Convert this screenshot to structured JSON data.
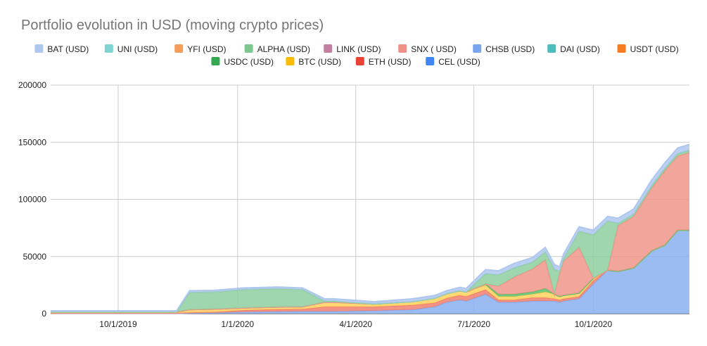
{
  "chart_data": {
    "type": "area",
    "stacked": true,
    "title": "Portfolio evolution in USD (moving crypto prices)",
    "xlabel": "",
    "ylabel": "",
    "ylim": [
      0,
      200000
    ],
    "yticks": [
      0,
      50000,
      100000,
      150000,
      200000
    ],
    "yticklabels": [
      "0",
      "50000",
      "100000",
      "150000",
      "200000"
    ],
    "xlim": [
      "2019-08-10",
      "2020-12-14"
    ],
    "xticks": [
      "2019-10-01",
      "2020-01-01",
      "2020-04-01",
      "2020-07-01",
      "2020-10-01"
    ],
    "xticklabels": [
      "10/1/2019",
      "1/1/2020",
      "4/1/2020",
      "7/1/2020",
      "10/1/2020"
    ],
    "grid": true,
    "legend_position": "top",
    "legend_order": [
      "BAT (USD)",
      "UNI (USD)",
      "YFI (USD)",
      "ALPHA (USD)",
      "LINK (USD)",
      "SNX ( USD)",
      "CHSB (USD)",
      "DAI (USD)",
      "USDT (USD)",
      "USDC (USD)",
      "BTC (USD)",
      "ETH (USD)",
      "CEL (USD)"
    ],
    "x": [
      "2019-08-10",
      "2019-09-15",
      "2019-10-15",
      "2019-11-15",
      "2019-11-25",
      "2019-12-15",
      "2020-01-05",
      "2020-02-01",
      "2020-02-20",
      "2020-03-08",
      "2020-03-15",
      "2020-04-15",
      "2020-05-15",
      "2020-06-01",
      "2020-06-10",
      "2020-06-20",
      "2020-06-25",
      "2020-07-10",
      "2020-07-20",
      "2020-08-01",
      "2020-08-15",
      "2020-08-25",
      "2020-09-01",
      "2020-09-05",
      "2020-09-08",
      "2020-09-20",
      "2020-10-01",
      "2020-10-12",
      "2020-10-20",
      "2020-11-01",
      "2020-11-15",
      "2020-11-25",
      "2020-12-05",
      "2020-12-14"
    ],
    "series": [
      {
        "name": "CEL (USD)",
        "color": "#8ab0f0",
        "values": [
          200,
          200,
          200,
          200,
          500,
          700,
          1500,
          1800,
          2000,
          2000,
          2000,
          2500,
          3500,
          6000,
          10000,
          12000,
          11000,
          17000,
          10000,
          10000,
          11000,
          11000,
          11000,
          10000,
          11000,
          13000,
          26000,
          38000,
          37000,
          40000,
          55000,
          60000,
          73000,
          73000
        ]
      },
      {
        "name": "ETH (USD)",
        "color": "#f08070",
        "values": [
          300,
          300,
          300,
          300,
          500,
          800,
          1500,
          2000,
          2000,
          4000,
          4000,
          3500,
          4000,
          3500,
          3500,
          4000,
          4000,
          4000,
          2000,
          2000,
          3000,
          3000,
          2000,
          2000,
          2000,
          2000,
          3000,
          0,
          0,
          0,
          0,
          0,
          0,
          0
        ]
      },
      {
        "name": "BTC (USD)",
        "color": "#ffd25e",
        "values": [
          1000,
          1000,
          1000,
          1000,
          2500,
          2500,
          2000,
          2000,
          2000,
          4000,
          4000,
          2500,
          3000,
          4000,
          4000,
          4000,
          4000,
          4000,
          3000,
          3000,
          3000,
          5000,
          4000,
          3000,
          3000,
          3000,
          2000,
          0,
          0,
          0,
          0,
          0,
          0,
          0
        ]
      },
      {
        "name": "USDC (USD)",
        "color": "#5fbf6e",
        "values": [
          0,
          0,
          0,
          0,
          0,
          0,
          0,
          0,
          0,
          0,
          0,
          0,
          0,
          0,
          0,
          0,
          0,
          1000,
          2000,
          2000,
          2000,
          3000,
          0,
          0,
          0,
          0,
          0,
          0,
          0,
          0,
          0,
          0,
          0,
          0
        ]
      },
      {
        "name": "SNX ( USD)",
        "color": "#f0958a",
        "values": [
          0,
          0,
          0,
          0,
          0,
          0,
          0,
          0,
          0,
          0,
          0,
          0,
          0,
          0,
          0,
          0,
          0,
          0,
          7000,
          15000,
          20000,
          25000,
          0,
          20000,
          30000,
          40000,
          0,
          0,
          40000,
          45000,
          55000,
          65000,
          65000,
          68000
        ]
      },
      {
        "name": "ALPHA (USD)",
        "color": "#8fcf9f",
        "values": [
          0,
          0,
          0,
          0,
          15000,
          15000,
          16000,
          16000,
          15000,
          1000,
          1000,
          0,
          0,
          0,
          0,
          0,
          0,
          9000,
          10000,
          8000,
          6000,
          7000,
          22000,
          2000,
          2000,
          14000,
          38000,
          43000,
          2000,
          2000,
          2000,
          2000,
          2000,
          2000
        ]
      },
      {
        "name": "BAT (USD)",
        "color": "#aec7ee",
        "values": [
          1000,
          1000,
          1000,
          1000,
          1500,
          1500,
          1500,
          1500,
          1500,
          2000,
          2000,
          2000,
          2500,
          2500,
          2500,
          3000,
          3000,
          3500,
          3500,
          4000,
          4000,
          4000,
          4000,
          4000,
          4000,
          4000,
          4000,
          4000,
          4500,
          4500,
          5000,
          5000,
          5000,
          5000
        ]
      }
    ]
  }
}
